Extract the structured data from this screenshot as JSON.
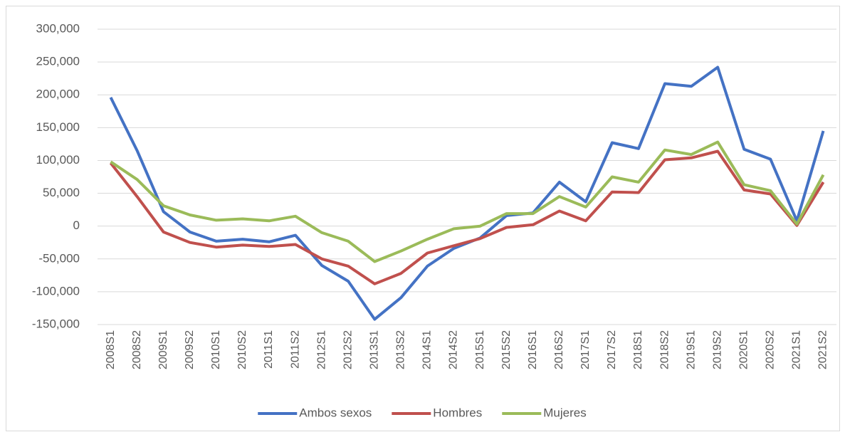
{
  "chart_data": {
    "type": "line",
    "categories": [
      "2008S1",
      "2008S2",
      "2009S1",
      "2009S2",
      "2010S1",
      "2010S2",
      "2011S1",
      "2011S2",
      "2012S1",
      "2012S2",
      "2013S1",
      "2013S2",
      "2014S1",
      "2014S2",
      "2015S1",
      "2015S2",
      "2016S1",
      "2016S2",
      "2017S1",
      "2017S2",
      "2018S1",
      "2018S2",
      "2019S1",
      "2019S2",
      "2020S1",
      "2020S2",
      "2021S1",
      "2021S2"
    ],
    "series": [
      {
        "name": "Ambos sexos",
        "color": "#4472c4",
        "values": [
          196000,
          115000,
          22000,
          -9000,
          -23000,
          -20000,
          -24000,
          -14000,
          -60000,
          -84000,
          -142000,
          -109000,
          -61000,
          -34000,
          -18000,
          16000,
          20000,
          67000,
          37000,
          127000,
          118000,
          217000,
          213000,
          242000,
          117000,
          102000,
          8000,
          145000
        ]
      },
      {
        "name": "Hombres",
        "color": "#c0504d",
        "values": [
          96000,
          45000,
          -9000,
          -25000,
          -32000,
          -29000,
          -31000,
          -28000,
          -50000,
          -61000,
          -88000,
          -72000,
          -41000,
          -30000,
          -19000,
          -2000,
          2000,
          23000,
          8000,
          52000,
          51000,
          101000,
          104000,
          114000,
          55000,
          49000,
          1000,
          67000
        ]
      },
      {
        "name": "Mujeres",
        "color": "#9bbb59",
        "values": [
          98000,
          71000,
          31000,
          17000,
          9000,
          11000,
          8000,
          15000,
          -10000,
          -23000,
          -54000,
          -38000,
          -20000,
          -4000,
          0,
          19000,
          19000,
          45000,
          29000,
          75000,
          67000,
          116000,
          109000,
          128000,
          63000,
          54000,
          3000,
          78000
        ]
      }
    ],
    "ylim": [
      -150000,
      300000
    ],
    "yticks": [
      {
        "value": -150000,
        "label": "-150,000"
      },
      {
        "value": -100000,
        "label": "-100,000"
      },
      {
        "value": -50000,
        "label": "-50,000"
      },
      0,
      {
        "value": 50000,
        "label": "50,000"
      },
      {
        "value": 100000,
        "label": "100,000"
      },
      {
        "value": 150000,
        "label": "150,000"
      },
      {
        "value": 200000,
        "label": "200,000"
      },
      {
        "value": 250000,
        "label": "250,000"
      },
      {
        "value": 300000,
        "label": "300,000"
      }
    ],
    "grid": true,
    "legend": "bottom"
  }
}
